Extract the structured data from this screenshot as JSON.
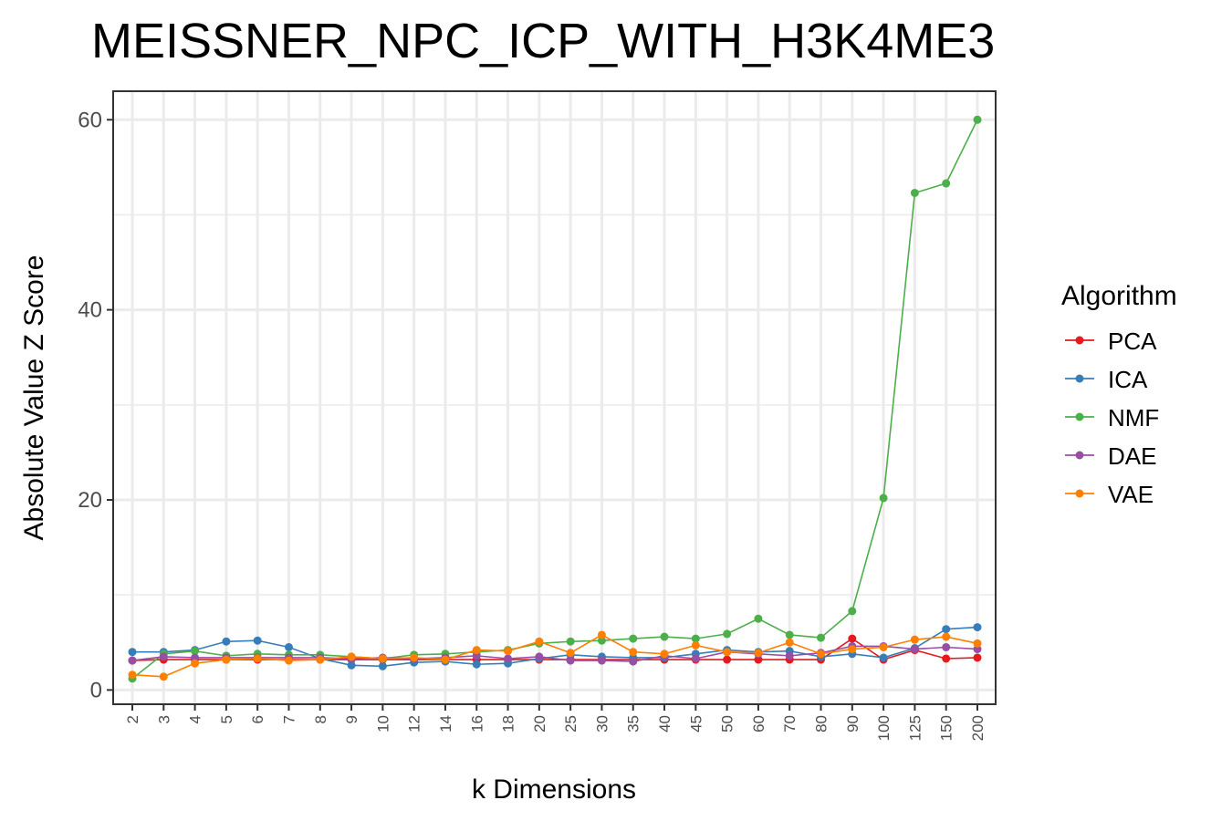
{
  "chart_data": {
    "type": "line",
    "title": "MEISSNER_NPC_ICP_WITH_H3K4ME3",
    "xlabel": "k Dimensions",
    "ylabel": "Absolute Value Z Score",
    "categories": [
      "2",
      "3",
      "4",
      "5",
      "6",
      "7",
      "8",
      "9",
      "10",
      "12",
      "14",
      "16",
      "18",
      "20",
      "25",
      "30",
      "35",
      "40",
      "45",
      "50",
      "60",
      "70",
      "80",
      "90",
      "100",
      "125",
      "150",
      "200"
    ],
    "ylim": [
      -1.5,
      63
    ],
    "yticks": [
      0,
      20,
      40,
      60
    ],
    "ytick_labels": [
      "0",
      "20",
      "40",
      "60"
    ],
    "grid": true,
    "legend": {
      "title": "Algorithm",
      "placement": "right"
    },
    "series": [
      {
        "name": "PCA",
        "color": "#E41A1C",
        "values": [
          3.1,
          3.2,
          3.2,
          3.2,
          3.2,
          3.2,
          3.2,
          3.2,
          3.2,
          3.2,
          3.2,
          3.2,
          3.2,
          3.2,
          3.2,
          3.2,
          3.2,
          3.2,
          3.2,
          3.2,
          3.2,
          3.2,
          3.2,
          5.4,
          3.2,
          4.2,
          3.3,
          3.4
        ]
      },
      {
        "name": "ICA",
        "color": "#377EB8",
        "values": [
          4.0,
          4.0,
          4.2,
          5.1,
          5.2,
          4.5,
          3.3,
          2.6,
          2.5,
          2.9,
          3.0,
          2.7,
          2.8,
          3.3,
          3.7,
          3.5,
          3.4,
          3.4,
          3.8,
          4.2,
          4.0,
          4.1,
          3.5,
          3.8,
          3.4,
          4.4,
          6.4,
          6.6
        ]
      },
      {
        "name": "NMF",
        "color": "#4DAF4A",
        "values": [
          1.2,
          3.8,
          4.1,
          3.6,
          3.8,
          3.7,
          3.7,
          3.5,
          3.3,
          3.7,
          3.8,
          4.0,
          4.2,
          4.9,
          5.1,
          5.2,
          5.4,
          5.6,
          5.4,
          5.9,
          7.5,
          5.8,
          5.5,
          8.3,
          20.2,
          52.3,
          53.3,
          60.0
        ]
      },
      {
        "name": "DAE",
        "color": "#984EA3",
        "values": [
          3.1,
          3.5,
          3.4,
          3.4,
          3.4,
          3.4,
          3.4,
          3.3,
          3.4,
          3.3,
          3.4,
          3.6,
          3.3,
          3.5,
          3.1,
          3.1,
          3.0,
          3.6,
          3.3,
          4.0,
          3.8,
          3.6,
          3.9,
          4.6,
          4.6,
          4.3,
          4.5,
          4.3
        ]
      },
      {
        "name": "VAE",
        "color": "#FF7F00",
        "values": [
          1.6,
          1.4,
          2.8,
          3.2,
          3.3,
          3.1,
          3.2,
          3.5,
          3.3,
          3.4,
          3.2,
          4.2,
          4.1,
          5.1,
          3.9,
          5.8,
          4.0,
          3.8,
          4.7,
          4.0,
          3.9,
          5.0,
          3.8,
          4.3,
          4.5,
          5.3,
          5.6,
          4.9
        ]
      }
    ]
  }
}
